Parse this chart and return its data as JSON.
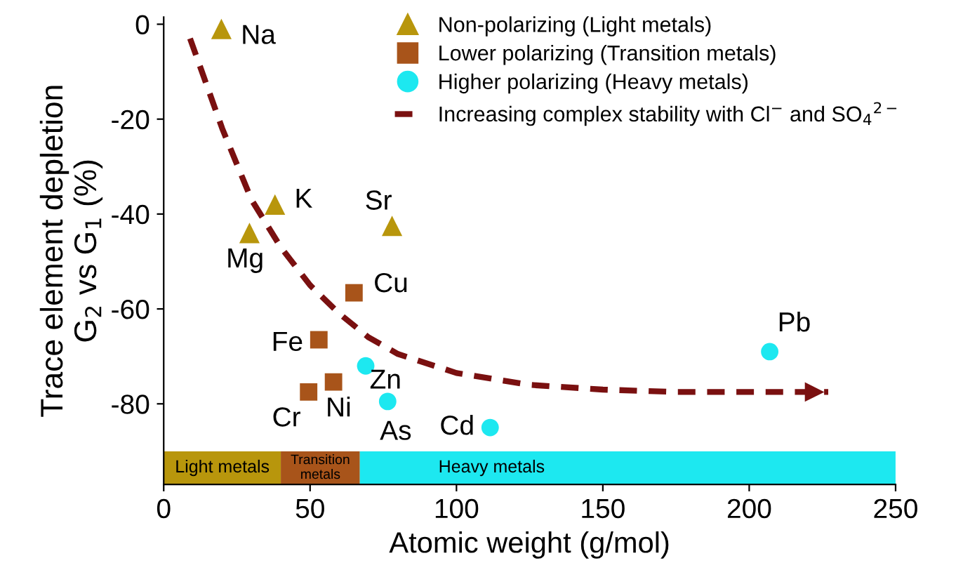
{
  "chart_data": {
    "type": "scatter",
    "xlabel": "Atomic weight (g/mol)",
    "ylabel": "Trace element depletion\nG$_{2}$ vs G$_{1}$ (%)",
    "xlim": [
      0,
      250
    ],
    "xticks": [
      0,
      50,
      100,
      150,
      200,
      250
    ],
    "ylim": [
      -97,
      1.5
    ],
    "yticks": [
      0,
      -20,
      -40,
      -60,
      -80
    ],
    "grid": false,
    "legend": "top right",
    "series": [
      {
        "name": "Non-polarizing (Light metals)",
        "color": "#b8960c",
        "marker": "triangle",
        "x": [
          19.7,
          38,
          29.3,
          78
        ],
        "values": [
          -1,
          -38,
          -44,
          -42.5
        ]
      },
      {
        "name": "Lower polarizing (Transition metals)",
        "color": "#a8541a",
        "marker": "square",
        "x": [
          65,
          53,
          58,
          49.5
        ],
        "values": [
          -56.6,
          -66.5,
          -75.4,
          -77.5
        ]
      },
      {
        "name": "Higher polarizing (Heavy metals)",
        "color": "#1de8f0",
        "marker": "circle",
        "x": [
          69,
          76.5,
          111.5,
          207
        ],
        "values": [
          -72,
          -79.5,
          -85,
          -69
        ]
      },
      {
        "name": "Increasing complex stability with Cl$^{−}$ and SO$_{4}$$^{2−}$",
        "type": "line",
        "line_style": "dashed",
        "color": "#7a1010",
        "x": [
          9,
          20,
          30,
          40,
          50,
          60,
          70,
          80,
          100,
          125,
          150,
          175,
          200,
          227
        ],
        "values": [
          -3,
          -22,
          -37,
          -47,
          -55,
          -61,
          -66,
          -69.5,
          -73.5,
          -76,
          -77,
          -77.5,
          -77.5,
          -77.5
        ]
      }
    ],
    "annotations": [
      {
        "text": "Na",
        "x": 19.7,
        "y": -1
      },
      {
        "text": "K",
        "x": 38,
        "y": -38
      },
      {
        "text": "Mg",
        "x": 29.3,
        "y": -44
      },
      {
        "text": "Sr",
        "x": 78,
        "y": -42.5
      },
      {
        "text": "Cu",
        "x": 65,
        "y": -56.6
      },
      {
        "text": "Fe",
        "x": 53,
        "y": -66.5
      },
      {
        "text": "Ni",
        "x": 58,
        "y": -75.4
      },
      {
        "text": "Cr",
        "x": 49.5,
        "y": -77.5
      },
      {
        "text": "Zn",
        "x": 69,
        "y": -72
      },
      {
        "text": "As",
        "x": 76.5,
        "y": -79.5
      },
      {
        "text": "Cd",
        "x": 111.5,
        "y": -85
      },
      {
        "text": "Pb",
        "x": 207,
        "y": -69
      }
    ],
    "bands": [
      {
        "axis": "x",
        "from": 0,
        "to": 40,
        "label": "Light metals",
        "color": "#b8960c"
      },
      {
        "axis": "x",
        "from": 40,
        "to": 67,
        "label": "Transition\nmetals",
        "color": "#a8541a"
      },
      {
        "axis": "x",
        "from": 67,
        "to": 250,
        "label": "Heavy metals",
        "color": "#1de8f0"
      }
    ]
  }
}
